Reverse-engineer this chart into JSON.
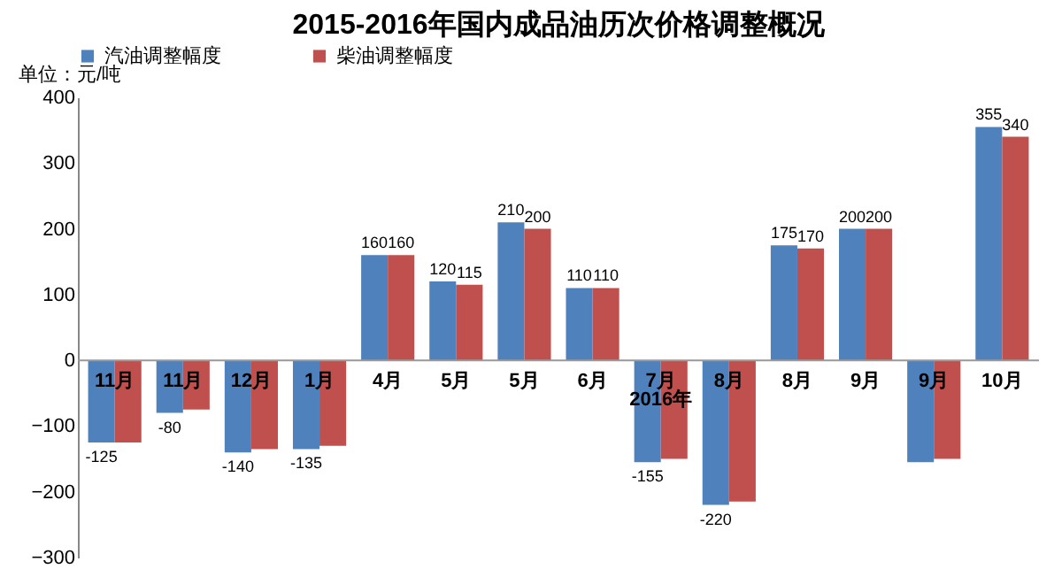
{
  "chart_data": {
    "type": "bar",
    "title": "2015-2016年国内成品油历次价格调整概况",
    "ylabel": "单位：元/吨",
    "categories": [
      "11月",
      "11月",
      "12月",
      "1月",
      "4月",
      "5月",
      "5月",
      "6月",
      "7月",
      "8月",
      "8月",
      "9月",
      "9月",
      "10月"
    ],
    "series": [
      {
        "name": "汽油调整幅度",
        "color": "#4f81bd",
        "values": [
          -125,
          -80,
          -140,
          -135,
          160,
          120,
          210,
          110,
          -155,
          -220,
          175,
          200,
          -155,
          355
        ],
        "value_labels": [
          "-125",
          "-80",
          "-140",
          "-135",
          "160",
          "120",
          "210",
          "110",
          "-155",
          "-220",
          "175",
          "200",
          null,
          "355"
        ]
      },
      {
        "name": "柴油调整幅度",
        "color": "#c0504d",
        "values": [
          -125,
          -75,
          -135,
          -130,
          160,
          115,
          200,
          110,
          -150,
          -215,
          170,
          200,
          -150,
          340
        ],
        "value_labels": [
          null,
          null,
          null,
          null,
          "160",
          "115",
          "200",
          "110",
          null,
          null,
          "170",
          "200",
          null,
          "340"
        ]
      }
    ],
    "ylim": [
      -300,
      400
    ],
    "yticks": [
      -300,
      -200,
      -100,
      0,
      100,
      200,
      300,
      400
    ],
    "annotations": [
      {
        "text": "2016年",
        "x": "7月",
        "y": -60
      }
    ],
    "legend": "top",
    "grid": false
  }
}
